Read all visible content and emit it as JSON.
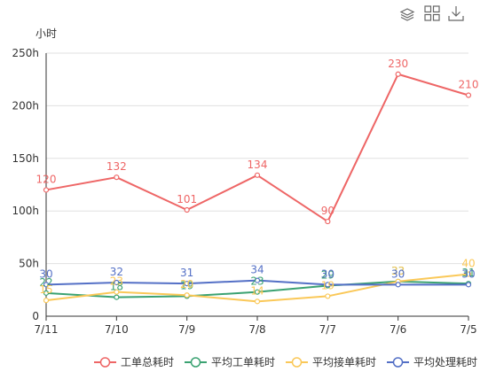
{
  "toolbar": {
    "icons": [
      "layers-icon",
      "data-view-icon",
      "download-icon"
    ]
  },
  "chart_data": {
    "type": "line",
    "ylabel": "小时",
    "ylim": [
      0,
      250
    ],
    "yticks": [
      0,
      50,
      100,
      150,
      200,
      250
    ],
    "ytick_labels": [
      "0",
      "50h",
      "100h",
      "150h",
      "200h",
      "250h"
    ],
    "categories": [
      "7/11",
      "7/10",
      "7/9",
      "7/8",
      "7/7",
      "7/6",
      "7/5"
    ],
    "grid": true,
    "legend_position": "bottom",
    "series": [
      {
        "name": "工单总耗时",
        "color": "#ee6666",
        "values": [
          120,
          132,
          101,
          134,
          90,
          230,
          210
        ]
      },
      {
        "name": "平均工单耗时",
        "color": "#3ba272",
        "values": [
          22,
          18,
          19,
          23,
          29,
          33,
          31
        ]
      },
      {
        "name": "平均接单耗时",
        "color": "#fac858",
        "values": [
          15,
          23,
          20,
          14,
          19,
          33,
          40
        ]
      },
      {
        "name": "平均处理耗时",
        "color": "#5470c6",
        "values": [
          30,
          32,
          31,
          34,
          30,
          30,
          30
        ]
      }
    ]
  }
}
